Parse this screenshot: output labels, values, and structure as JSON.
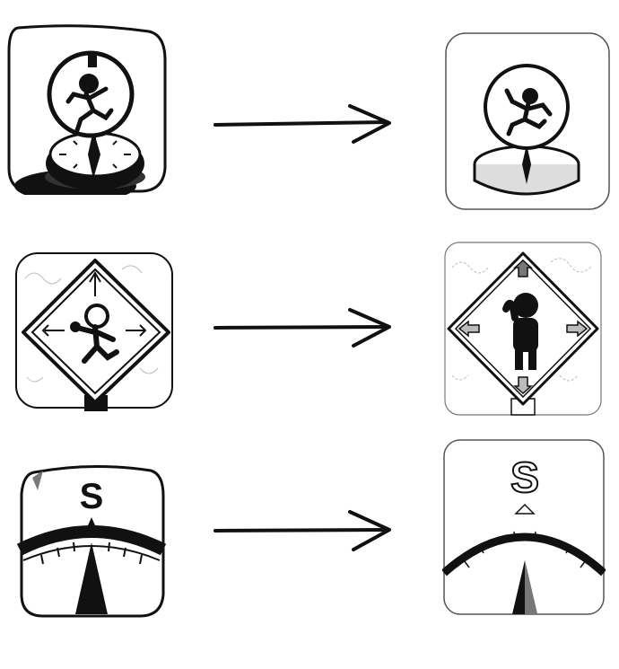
{
  "rows": [
    {
      "before": {
        "icon": "runner-compass-icon",
        "style": "rough-sketch"
      },
      "arrow": {
        "icon": "right-arrow-icon"
      },
      "after": {
        "icon": "runner-compass-icon",
        "style": "refined-sketch"
      }
    },
    {
      "before": {
        "icon": "runner-direction-sign-icon",
        "style": "rough-sketch"
      },
      "arrow": {
        "icon": "right-arrow-icon"
      },
      "after": {
        "icon": "runner-direction-sign-icon",
        "style": "refined-sketch"
      }
    },
    {
      "before": {
        "icon": "south-compass-dial-icon",
        "style": "rough-sketch",
        "letter": "S"
      },
      "arrow": {
        "icon": "right-arrow-icon"
      },
      "after": {
        "icon": "south-compass-dial-icon",
        "style": "refined-sketch",
        "letter": "S"
      }
    }
  ],
  "colors": {
    "ink": "#111111",
    "paper": "#ffffff",
    "shade": "#cfcfcf"
  }
}
